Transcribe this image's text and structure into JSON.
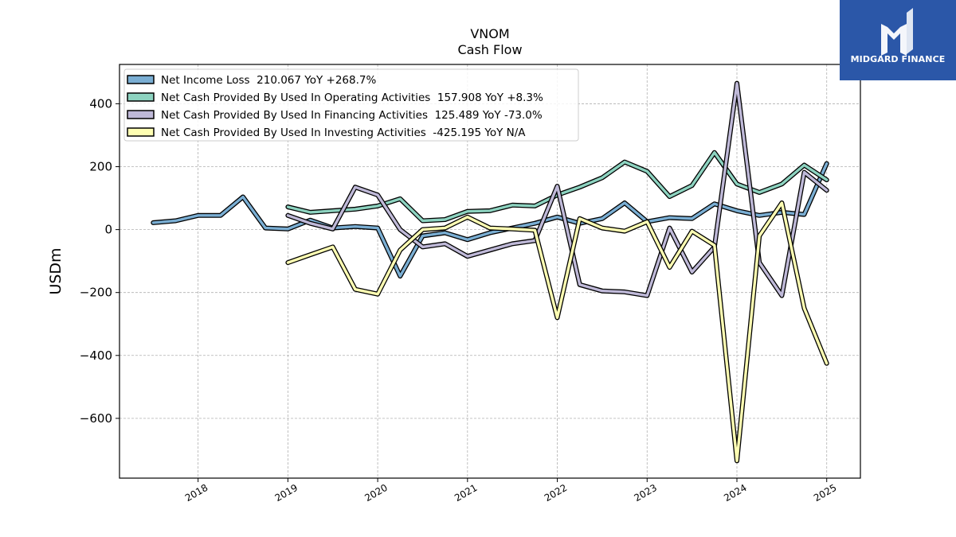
{
  "brand": {
    "name": "MIDGARD FINANCE",
    "logo_color": "#2b57a8"
  },
  "chart_data": {
    "type": "line",
    "title": "VNOM",
    "subtitle": "Cash Flow",
    "xlabel": "",
    "ylabel": "USDm",
    "ylim": [
      -790,
      525
    ],
    "xlim": [
      2017.125,
      2025.375
    ],
    "yticks": [
      -600,
      -400,
      -200,
      0,
      200,
      400
    ],
    "ytick_labels": [
      "−600",
      "−400",
      "−200",
      "0",
      "200",
      "400"
    ],
    "xticks": [
      2018,
      2019,
      2020,
      2021,
      2022,
      2023,
      2024,
      2025
    ],
    "xtick_labels": [
      "2018",
      "2019",
      "2020",
      "2021",
      "2022",
      "2023",
      "2024",
      "2025"
    ],
    "grid": true,
    "legend_position": "top-left",
    "series": [
      {
        "name": "Net Income Loss  210.067 YoY +268.7%",
        "color": "#7aaed3",
        "x": [
          2017.5,
          2017.75,
          2018.0,
          2018.25,
          2018.5,
          2018.75,
          2019.0,
          2019.25,
          2019.5,
          2019.75,
          2020.0,
          2020.25,
          2020.5,
          2020.75,
          2021.0,
          2021.25,
          2021.5,
          2021.75,
          2022.0,
          2022.25,
          2022.5,
          2022.75,
          2023.0,
          2023.25,
          2023.5,
          2023.75,
          2024.0,
          2024.25,
          2024.5,
          2024.75,
          2025.0
        ],
        "values": [
          22,
          28,
          45,
          45,
          104,
          5,
          2,
          30,
          5,
          10,
          5,
          -148,
          -20,
          -10,
          -32,
          -10,
          5,
          20,
          40,
          20,
          35,
          85,
          25,
          38,
          35,
          82,
          60,
          45,
          55,
          48,
          210
        ]
      },
      {
        "name": "Net Cash Provided By Used In Operating Activities  157.908 YoY +8.3%",
        "color": "#8dd3c0",
        "x": [
          2019.0,
          2019.25,
          2019.5,
          2019.75,
          2020.0,
          2020.25,
          2020.5,
          2020.75,
          2021.0,
          2021.25,
          2021.5,
          2021.75,
          2022.0,
          2022.25,
          2022.5,
          2022.75,
          2023.0,
          2023.25,
          2023.5,
          2023.75,
          2024.0,
          2024.25,
          2024.5,
          2024.75,
          2025.0
        ],
        "values": [
          72,
          55,
          60,
          65,
          75,
          98,
          28,
          32,
          58,
          60,
          78,
          75,
          110,
          135,
          165,
          215,
          185,
          105,
          140,
          245,
          145,
          118,
          145,
          205,
          158
        ]
      },
      {
        "name": "Net Cash Provided By Used In Financing Activities  125.489 YoY -73.0%",
        "color": "#bfb9d8",
        "x": [
          2019.0,
          2019.25,
          2019.5,
          2019.75,
          2020.0,
          2020.25,
          2020.5,
          2020.75,
          2021.0,
          2021.25,
          2021.5,
          2021.75,
          2022.0,
          2022.25,
          2022.5,
          2022.75,
          2023.0,
          2023.25,
          2023.5,
          2023.75,
          2024.0,
          2024.25,
          2024.5,
          2024.75,
          2025.0
        ],
        "values": [
          45,
          20,
          2,
          135,
          110,
          0,
          -55,
          -45,
          -85,
          -65,
          -45,
          -35,
          138,
          -175,
          -195,
          -198,
          -210,
          5,
          -135,
          -55,
          465,
          -105,
          -210,
          182,
          125
        ]
      },
      {
        "name": "Net Cash Provided By Used In Investing Activities  -425.195 YoY N/A",
        "color": "#ffffb3",
        "x": [
          2019.0,
          2019.25,
          2019.5,
          2019.75,
          2020.0,
          2020.25,
          2020.5,
          2020.75,
          2021.0,
          2021.25,
          2021.5,
          2021.75,
          2022.0,
          2022.25,
          2022.5,
          2022.75,
          2023.0,
          2023.25,
          2023.5,
          2023.75,
          2024.0,
          2024.25,
          2024.5,
          2024.75,
          2025.0
        ],
        "values": [
          -105,
          -80,
          -55,
          -190,
          -205,
          -65,
          0,
          5,
          40,
          5,
          2,
          -2,
          -280,
          35,
          5,
          -5,
          25,
          -120,
          -5,
          -50,
          -735,
          -20,
          85,
          -250,
          -425
        ]
      }
    ]
  }
}
